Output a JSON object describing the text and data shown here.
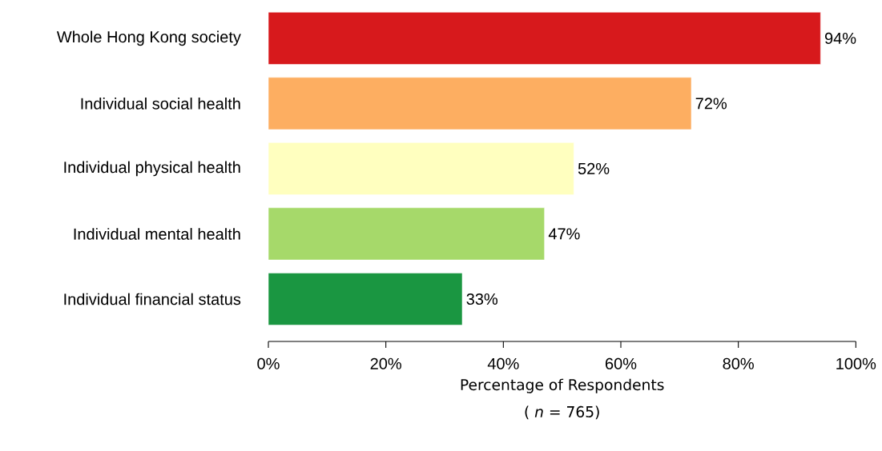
{
  "chart_data": {
    "type": "bar",
    "orientation": "horizontal",
    "categories": [
      "Whole Hong Kong society",
      "Individual social health",
      "Individual physical health",
      "Individual mental health",
      "Individual financial status"
    ],
    "values": [
      94,
      72,
      52,
      47,
      33
    ],
    "value_labels": [
      "94%",
      "72%",
      "52%",
      "47%",
      "33%"
    ],
    "colors": [
      "#d7191c",
      "#fdae61",
      "#ffffbf",
      "#a6d96a",
      "#1a9641"
    ],
    "xlim": [
      0,
      100
    ],
    "xticks": [
      {
        "value": 0,
        "label": "0%"
      },
      {
        "value": 20,
        "label": "20%"
      },
      {
        "value": 40,
        "label": "40%"
      },
      {
        "value": 60,
        "label": "60%"
      },
      {
        "value": 80,
        "label": "80%"
      },
      {
        "value": 100,
        "label": "100%"
      }
    ],
    "xlabel": "Percentage of Respondents",
    "annotations": [
      "( *n* = 765)"
    ]
  }
}
